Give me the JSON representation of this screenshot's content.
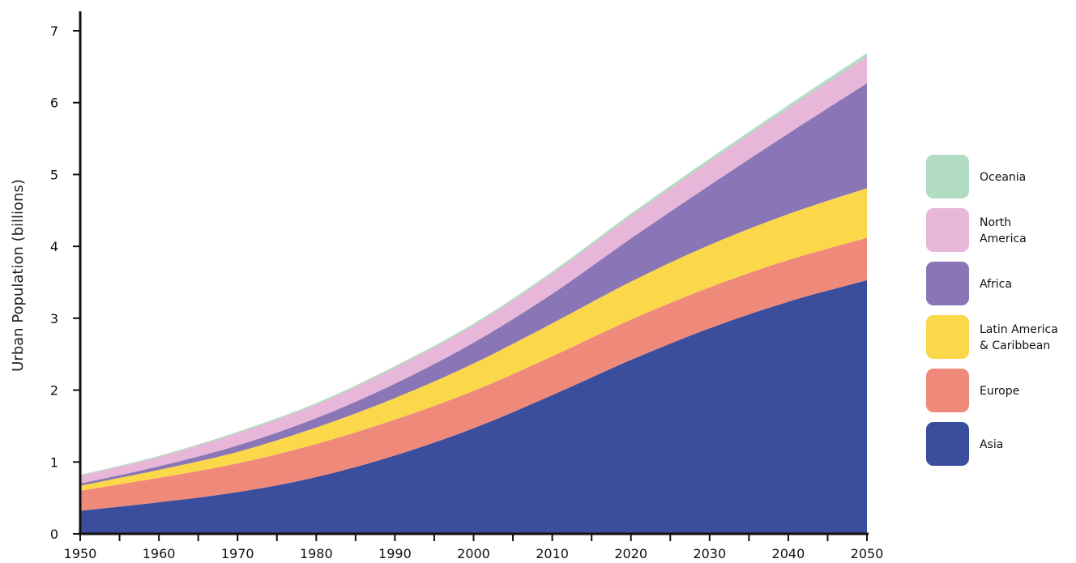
{
  "chart_data": {
    "type": "area",
    "stacked": true,
    "title": "",
    "xlabel": "",
    "ylabel": "Urban Population (billions)",
    "xlim": [
      1950,
      2050
    ],
    "ylim": [
      0,
      7
    ],
    "x_ticks": [
      1950,
      1960,
      1970,
      1980,
      1990,
      2000,
      2010,
      2020,
      2030,
      2040,
      2050
    ],
    "y_ticks": [
      0,
      1,
      2,
      3,
      4,
      5,
      6,
      7
    ],
    "grid": false,
    "legend_position": "right",
    "x": [
      1950,
      1960,
      1970,
      1980,
      1990,
      2000,
      2010,
      2020,
      2030,
      2040,
      2050
    ],
    "series": [
      {
        "name": "Asia",
        "color": "#3b4d9d",
        "values": [
          0.32,
          0.44,
          0.58,
          0.79,
          1.09,
          1.47,
          1.93,
          2.42,
          2.86,
          3.23,
          3.53
        ]
      },
      {
        "name": "Europe",
        "color": "#ef8a7a",
        "values": [
          0.28,
          0.34,
          0.4,
          0.46,
          0.5,
          0.52,
          0.54,
          0.56,
          0.57,
          0.58,
          0.59
        ]
      },
      {
        "name": "Latin America\n& Caribbean",
        "color": "#fbd74a",
        "values": [
          0.07,
          0.11,
          0.16,
          0.23,
          0.3,
          0.38,
          0.46,
          0.53,
          0.59,
          0.64,
          0.69
        ]
      },
      {
        "name": "Africa",
        "color": "#8a76b6",
        "values": [
          0.03,
          0.05,
          0.09,
          0.13,
          0.2,
          0.29,
          0.41,
          0.6,
          0.83,
          1.12,
          1.46
        ]
      },
      {
        "name": "North\nAmerica",
        "color": "#e7b6d8",
        "values": [
          0.11,
          0.13,
          0.17,
          0.19,
          0.22,
          0.24,
          0.28,
          0.31,
          0.33,
          0.35,
          0.37
        ]
      },
      {
        "name": "Oceania",
        "color": "#b1dcc2",
        "values": [
          0.01,
          0.015,
          0.02,
          0.02,
          0.025,
          0.025,
          0.03,
          0.035,
          0.04,
          0.045,
          0.05
        ]
      }
    ]
  }
}
